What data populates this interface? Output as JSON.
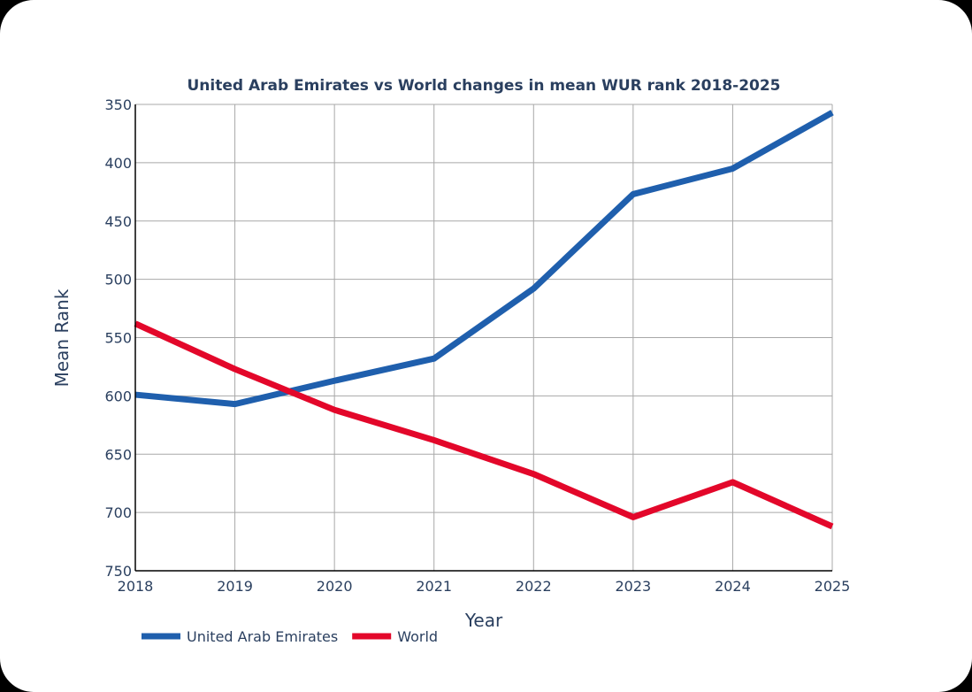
{
  "chart_data": {
    "type": "line",
    "title": "United Arab Emirates vs World changes in mean WUR rank 2018-2025",
    "xlabel": "Year",
    "ylabel": "Mean Rank",
    "x": [
      2018,
      2019,
      2020,
      2021,
      2022,
      2023,
      2024,
      2025
    ],
    "x_tick_labels": [
      "2018",
      "2019",
      "2020",
      "2021",
      "2022",
      "2023",
      "2024",
      "2025"
    ],
    "ylim": [
      750,
      350
    ],
    "y_reversed": true,
    "y_ticks": [
      350,
      400,
      450,
      500,
      550,
      600,
      650,
      700,
      750
    ],
    "grid": true,
    "legend_position": "bottom-left",
    "series": [
      {
        "name": "United Arab Emirates",
        "color": "#1f5fad",
        "values": [
          599,
          607,
          587,
          568,
          508,
          427,
          405,
          357
        ]
      },
      {
        "name": "World",
        "color": "#e3072a",
        "values": [
          538,
          577,
          612,
          638,
          667,
          704,
          674,
          712
        ]
      }
    ]
  }
}
